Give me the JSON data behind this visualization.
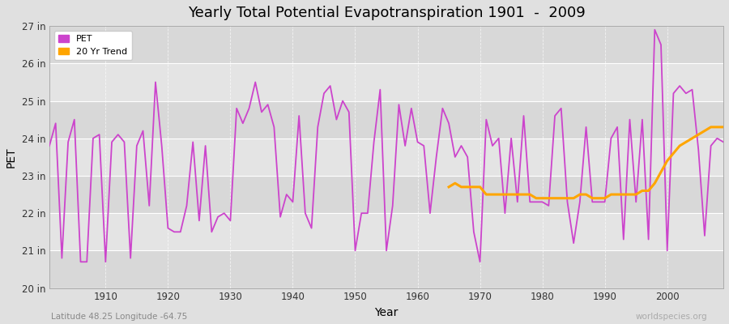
{
  "title": "Yearly Total Potential Evapotranspiration 1901  -  2009",
  "xlabel": "Year",
  "ylabel": "PET",
  "subtitle_left": "Latitude 48.25 Longitude -64.75",
  "subtitle_right": "worldspecies.org",
  "ylim": [
    20,
    27
  ],
  "ytick_labels": [
    "20 in",
    "21 in",
    "22 in",
    "23 in",
    "24 in",
    "25 in",
    "26 in",
    "27 in"
  ],
  "ytick_values": [
    20,
    21,
    22,
    23,
    24,
    25,
    26,
    27
  ],
  "pet_color": "#cc44cc",
  "trend_color": "#ffa500",
  "bg_color": "#e8e8e8",
  "band_colors": [
    "#dcdcdc",
    "#e8e8e8"
  ],
  "years": [
    1901,
    1902,
    1903,
    1904,
    1905,
    1906,
    1907,
    1908,
    1909,
    1910,
    1911,
    1912,
    1913,
    1914,
    1915,
    1916,
    1917,
    1918,
    1919,
    1920,
    1921,
    1922,
    1923,
    1924,
    1925,
    1926,
    1927,
    1928,
    1929,
    1930,
    1931,
    1932,
    1933,
    1934,
    1935,
    1936,
    1937,
    1938,
    1939,
    1940,
    1941,
    1942,
    1943,
    1944,
    1945,
    1946,
    1947,
    1948,
    1949,
    1950,
    1951,
    1952,
    1953,
    1954,
    1955,
    1956,
    1957,
    1958,
    1959,
    1960,
    1961,
    1962,
    1963,
    1964,
    1965,
    1966,
    1967,
    1968,
    1969,
    1970,
    1971,
    1972,
    1973,
    1974,
    1975,
    1976,
    1977,
    1978,
    1979,
    1980,
    1981,
    1982,
    1983,
    1984,
    1985,
    1986,
    1987,
    1988,
    1989,
    1990,
    1991,
    1992,
    1993,
    1994,
    1995,
    1996,
    1997,
    1998,
    1999,
    2000,
    2001,
    2002,
    2003,
    2004,
    2005,
    2006,
    2007,
    2008,
    2009
  ],
  "pet_values": [
    23.8,
    24.4,
    20.8,
    23.9,
    24.5,
    20.7,
    20.7,
    24.0,
    24.1,
    20.7,
    23.9,
    24.1,
    23.9,
    20.8,
    23.8,
    24.2,
    22.2,
    25.5,
    23.8,
    21.6,
    21.5,
    21.5,
    22.2,
    23.9,
    21.8,
    23.8,
    21.5,
    21.9,
    22.0,
    21.8,
    24.8,
    24.4,
    24.8,
    25.5,
    24.7,
    24.9,
    24.3,
    21.9,
    22.5,
    22.3,
    24.6,
    22.0,
    21.6,
    24.3,
    25.2,
    25.4,
    24.5,
    25.0,
    24.7,
    21.0,
    22.0,
    22.0,
    23.9,
    25.3,
    21.0,
    22.2,
    24.9,
    23.8,
    24.8,
    23.9,
    23.8,
    22.0,
    23.5,
    24.8,
    24.4,
    23.5,
    23.8,
    23.5,
    21.5,
    20.7,
    24.5,
    23.8,
    24.0,
    22.0,
    24.0,
    22.3,
    24.6,
    22.3,
    22.3,
    22.3,
    22.2,
    24.6,
    24.8,
    22.3,
    21.2,
    22.3,
    24.3,
    22.3,
    22.3,
    22.3,
    24.0,
    24.3,
    21.3,
    24.5,
    22.3,
    24.5,
    21.3,
    26.9,
    26.5,
    21.0,
    25.2,
    25.4,
    25.2,
    25.3,
    23.7,
    21.4,
    23.8,
    24.0,
    23.9
  ],
  "trend_years": [
    1965,
    1966,
    1967,
    1968,
    1969,
    1970,
    1971,
    1972,
    1973,
    1974,
    1975,
    1976,
    1977,
    1978,
    1979,
    1980,
    1981,
    1982,
    1983,
    1984,
    1985,
    1986,
    1987,
    1988,
    1989,
    1990,
    1991,
    1992,
    1993,
    1994,
    1995,
    1996,
    1997,
    1998,
    1999,
    2000,
    2001,
    2002,
    2003,
    2004,
    2005,
    2006,
    2007,
    2008,
    2009
  ],
  "trend_values": [
    22.7,
    22.8,
    22.7,
    22.7,
    22.7,
    22.7,
    22.5,
    22.5,
    22.5,
    22.5,
    22.5,
    22.5,
    22.5,
    22.5,
    22.4,
    22.4,
    22.4,
    22.4,
    22.4,
    22.4,
    22.4,
    22.5,
    22.5,
    22.4,
    22.4,
    22.4,
    22.5,
    22.5,
    22.5,
    22.5,
    22.5,
    22.6,
    22.6,
    22.8,
    23.1,
    23.4,
    23.6,
    23.8,
    23.9,
    24.0,
    24.1,
    24.2,
    24.3,
    24.3,
    24.3
  ]
}
